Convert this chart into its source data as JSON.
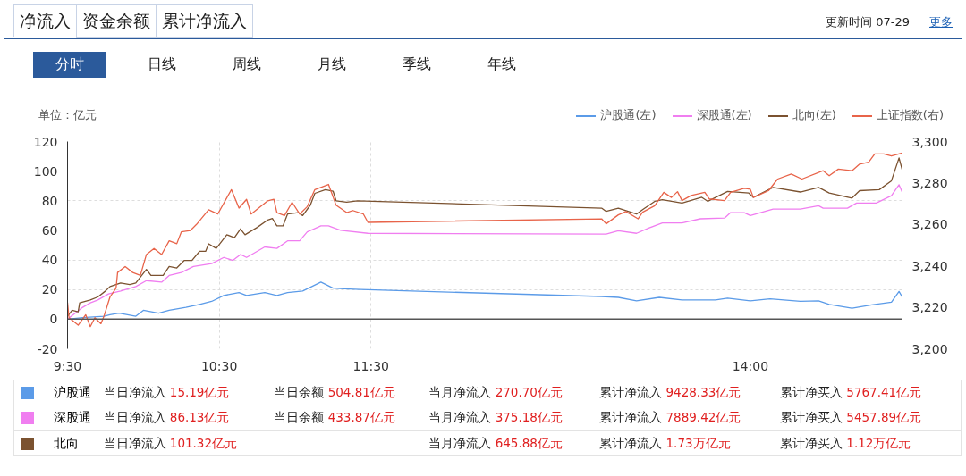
{
  "chart_data": {
    "type": "line",
    "ylabel": "单位：亿元",
    "xlim": [
      9.5,
      15
    ],
    "xticks": [
      {
        "value": 9.5,
        "label": "9:30"
      },
      {
        "value": 10.5,
        "label": "10:30"
      },
      {
        "value": 11.5,
        "label": "11:30"
      },
      {
        "value": 14,
        "label": "14:00"
      }
    ],
    "ylim": [
      -20,
      120
    ],
    "yticks": [
      -20,
      0,
      20,
      40,
      60,
      80,
      100,
      120
    ],
    "y2lim": [
      3200,
      3300
    ],
    "y2ticks": [
      {
        "value": 3200,
        "label": "3,200"
      },
      {
        "value": 3220,
        "label": "3,220"
      },
      {
        "value": 3240,
        "label": "3,240"
      },
      {
        "value": 3260,
        "label": "3,260"
      },
      {
        "value": 3280,
        "label": "3,280"
      },
      {
        "value": 3300,
        "label": "3,300"
      }
    ],
    "grid": true,
    "legend": "top right",
    "marker": "none",
    "line_style": "solid",
    "ref_lines": [
      {
        "axis": "y",
        "value": 0,
        "color": "#555555"
      }
    ],
    "series": [
      {
        "name": "沪股通(左)",
        "color": "#5b9be8",
        "x": [
          9.5,
          9.6,
          9.74,
          9.78,
          9.84,
          9.95,
          10.0,
          10.1,
          10.17,
          10.28,
          10.37,
          10.45,
          10.53,
          10.63,
          10.68,
          10.8,
          10.88,
          10.95,
          11.05,
          11.17,
          11.25,
          11.32,
          11.43,
          13.02,
          13.13,
          13.25,
          13.4,
          13.55,
          13.77,
          13.85,
          14.0,
          14.13,
          14.33,
          14.45,
          14.52,
          14.67,
          14.8,
          14.93,
          14.98,
          15.0
        ],
        "values": [
          0,
          1,
          2,
          3,
          4,
          2,
          6,
          4,
          6,
          8,
          10,
          12,
          16,
          18,
          16,
          18,
          16,
          18,
          19,
          25,
          21,
          20.5,
          20,
          15.3,
          14.7,
          12.4,
          14.7,
          13,
          13,
          14.2,
          12.4,
          13.7,
          12,
          12.4,
          10,
          7.4,
          9.7,
          11.5,
          18.7,
          15.2
        ]
      },
      {
        "name": "深股通(左)",
        "color": "#f07ef0",
        "x": [
          9.5,
          9.55,
          9.6,
          9.65,
          9.7,
          9.77,
          9.85,
          9.95,
          10.02,
          10.12,
          10.17,
          10.25,
          10.33,
          10.45,
          10.53,
          10.59,
          10.64,
          10.68,
          10.8,
          10.88,
          10.95,
          11.03,
          11.08,
          11.17,
          11.22,
          11.3,
          11.48,
          13.05,
          13.13,
          13.25,
          13.33,
          13.42,
          13.55,
          13.67,
          13.83,
          13.87,
          13.96,
          14.0,
          14.15,
          14.33,
          14.45,
          14.48,
          14.64,
          14.7,
          14.83,
          14.93,
          14.98,
          15.0
        ],
        "values": [
          0,
          4,
          8,
          11,
          13,
          17,
          19,
          22,
          26,
          25,
          29.5,
          31.5,
          35.6,
          37.6,
          41.7,
          39.7,
          43.7,
          41.7,
          48.8,
          47.8,
          52.9,
          52.9,
          59,
          63,
          63,
          60,
          58,
          57.5,
          59.7,
          58,
          61.5,
          65,
          65,
          67.8,
          68.3,
          72,
          72,
          70,
          74.4,
          74.4,
          76.6,
          75,
          75,
          78.4,
          78.4,
          83.4,
          90.8,
          86.1
        ]
      },
      {
        "name": "北向(左)",
        "color": "#7b5230",
        "x": [
          9.5,
          9.53,
          9.57,
          9.58,
          9.65,
          9.7,
          9.75,
          9.78,
          9.85,
          9.91,
          9.95,
          10.02,
          10.05,
          10.13,
          10.17,
          10.22,
          10.27,
          10.32,
          10.37,
          10.41,
          10.43,
          10.48,
          10.55,
          10.6,
          10.64,
          10.67,
          10.75,
          10.82,
          10.85,
          10.88,
          10.92,
          10.95,
          11.02,
          11.05,
          11.1,
          11.13,
          11.2,
          11.25,
          11.27,
          11.34,
          11.41,
          13.02,
          13.05,
          13.13,
          13.25,
          13.29,
          13.37,
          13.42,
          13.55,
          13.68,
          13.72,
          13.85,
          13.99,
          14.02,
          14.15,
          14.33,
          14.45,
          14.52,
          14.67,
          14.72,
          14.85,
          14.93,
          14.98,
          15.0
        ],
        "values": [
          2,
          6,
          5,
          11,
          13,
          15,
          19,
          22,
          24.4,
          23.4,
          24.4,
          33.6,
          29.5,
          29.5,
          35.6,
          34.6,
          39.7,
          39.7,
          45.8,
          45.8,
          50.9,
          47.8,
          57,
          55,
          61,
          57,
          62,
          67,
          68,
          63,
          63,
          71,
          72,
          70,
          77,
          85,
          87.5,
          86.5,
          80,
          79,
          80,
          75,
          72.8,
          75,
          71,
          74,
          79.6,
          80.7,
          78.4,
          82.3,
          79.6,
          86.3,
          85.2,
          82.3,
          89,
          85.9,
          89,
          85.2,
          81.8,
          86.8,
          87.5,
          93.5,
          108.9,
          101.3
        ]
      },
      {
        "name": "上证指数(右)",
        "color": "#e8644a",
        "axis": "y2",
        "x": [
          9.5,
          9.51,
          9.57,
          9.62,
          9.65,
          9.68,
          9.72,
          9.74,
          9.78,
          9.82,
          9.83,
          9.88,
          9.93,
          9.98,
          10.02,
          10.07,
          10.12,
          10.17,
          10.22,
          10.25,
          10.31,
          10.35,
          10.43,
          10.49,
          10.58,
          10.63,
          10.68,
          10.71,
          10.82,
          10.86,
          10.88,
          10.93,
          10.98,
          11.03,
          11.08,
          11.13,
          11.22,
          11.27,
          11.34,
          11.38,
          11.45,
          11.48,
          13.02,
          13.05,
          13.13,
          13.18,
          13.26,
          13.29,
          13.37,
          13.43,
          13.48,
          13.52,
          13.55,
          13.61,
          13.7,
          13.73,
          13.83,
          13.87,
          13.96,
          14.0,
          14.02,
          14.12,
          14.18,
          14.27,
          14.34,
          14.48,
          14.52,
          14.58,
          14.67,
          14.72,
          14.78,
          14.82,
          14.88,
          14.93,
          15.0
        ],
        "values": [
          3222.3,
          3215,
          3211.4,
          3216.4,
          3210.7,
          3215,
          3212.1,
          3215.7,
          3225,
          3229.3,
          3236.8,
          3239.7,
          3236.8,
          3235.4,
          3245.5,
          3248.4,
          3245.5,
          3252.1,
          3250.7,
          3256.4,
          3257.1,
          3260,
          3267.1,
          3265,
          3276.8,
          3267.9,
          3272.1,
          3265,
          3271.4,
          3272.1,
          3265.7,
          3264.3,
          3270.7,
          3265,
          3268.6,
          3276.8,
          3279.3,
          3269.3,
          3265.7,
          3266.7,
          3265,
          3261,
          3262.7,
          3260.3,
          3264.6,
          3266.2,
          3262.7,
          3265.9,
          3269,
          3275.5,
          3273,
          3275.8,
          3271.5,
          3274,
          3275.5,
          3272.3,
          3271.5,
          3275.5,
          3277.4,
          3277,
          3273,
          3276.3,
          3281.9,
          3284.3,
          3281.9,
          3285.9,
          3283.5,
          3286.7,
          3285.9,
          3289.1,
          3290,
          3294,
          3294,
          3293,
          3294.4
        ]
      }
    ],
    "annotations": [
      "净流入",
      "资金余额",
      "累计净流入",
      "更新时间 07-29",
      "更多",
      "分时",
      "日线",
      "周线",
      "月线",
      "季线",
      "年线",
      "沪股通",
      "当日净流入 15.19亿元",
      "当日余额 504.81亿元",
      "当月净流入 270.70亿元",
      "累计净流入 9428.33亿元",
      "累计净买入 5767.41亿元",
      "深股通",
      "当日净流入 86.13亿元",
      "当日余额 433.87亿元",
      "当月净流入 375.18亿元",
      "累计净流入 7889.42亿元",
      "累计净买入 5457.89亿元",
      "北向",
      "当日净流入 101.32亿元",
      null,
      "当月净流入 645.88亿元",
      "累计净流入 1.73万亿元",
      "累计净买入 1.12万亿元"
    ]
  }
}
